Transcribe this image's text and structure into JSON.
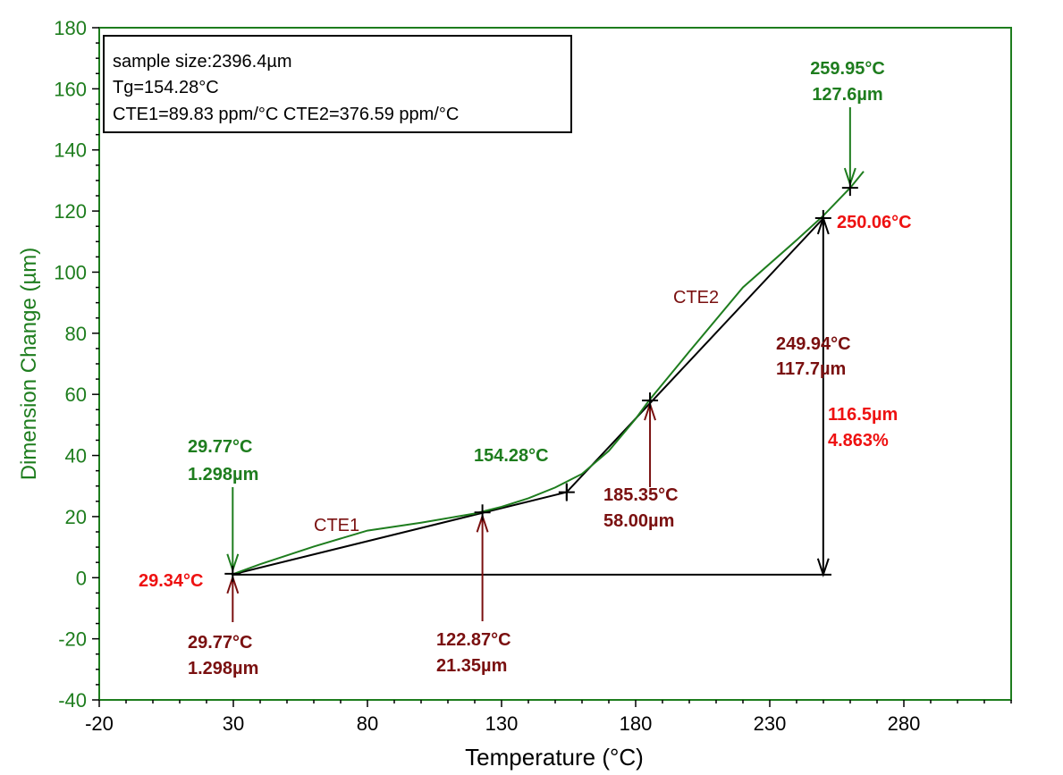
{
  "colors": {
    "green": "#1e7d1e",
    "dark_red": "#7a1010",
    "red": "#ee1111",
    "black": "#000000"
  },
  "chart_data": {
    "type": "line",
    "xlabel": "Temperature (°C)",
    "ylabel": "Dimension Change (µm)",
    "xlim": [
      -20,
      320
    ],
    "ylim": [
      -40,
      180
    ],
    "x_ticks": [
      -20,
      30,
      80,
      130,
      180,
      230,
      280
    ],
    "x_tick_labels": [
      "-20",
      "30",
      "80",
      "130",
      "180",
      "230",
      "280"
    ],
    "y_ticks": [
      -40,
      -20,
      0,
      20,
      40,
      60,
      80,
      100,
      120,
      140,
      160,
      180
    ],
    "y_tick_labels": [
      "-40",
      "-20",
      "0",
      "20",
      "40",
      "60",
      "80",
      "100",
      "120",
      "140",
      "160",
      "180"
    ],
    "legend": {
      "lines": [
        "sample size:2396.4µm",
        "Tg=154.28°C",
        "CTE1=89.83 ppm/°C  CTE2=376.59 ppm/°C"
      ]
    },
    "series": [
      {
        "name": "Dimension change",
        "color": "green",
        "x": [
          29.3,
          40,
          60,
          80,
          100,
          120,
          130,
          140,
          150,
          160,
          170,
          180,
          185,
          200,
          220,
          240,
          250,
          260,
          265
        ],
        "y": [
          1.0,
          4.4,
          10.2,
          15.4,
          18.0,
          21.0,
          23.2,
          26.0,
          29.5,
          34.0,
          41.5,
          52.0,
          58.0,
          74.0,
          95.0,
          110.5,
          118.5,
          127.6,
          133.0
        ]
      }
    ],
    "fit_lines": [
      {
        "name": "CTE1",
        "x": [
          29.34,
          154.28
        ],
        "y": [
          1.0,
          28.0
        ]
      },
      {
        "name": "CTE2",
        "x": [
          154.28,
          250.06
        ],
        "y": [
          28.0,
          117.7
        ]
      }
    ],
    "baseline": {
      "x": [
        29.34,
        253.0
      ],
      "y": [
        1.0,
        1.0
      ]
    },
    "markers": [
      {
        "x": 29.77,
        "y": 1.3
      },
      {
        "x": 122.87,
        "y": 21.35
      },
      {
        "x": 154.28,
        "y": 28.0
      },
      {
        "x": 185.35,
        "y": 58.0
      },
      {
        "x": 249.94,
        "y": 117.7
      },
      {
        "x": 259.95,
        "y": 127.6
      }
    ],
    "annotations": [
      {
        "text": "259.95°C",
        "text2": "127.6µm",
        "color": "green"
      },
      {
        "text": "250.06°C",
        "color": "red"
      },
      {
        "text": "CTE2",
        "color": "dark_red"
      },
      {
        "text": "249.94°C",
        "text2": "117.7µm",
        "color": "dark_red"
      },
      {
        "text": "116.5µm",
        "text2": "4.863%",
        "color": "red"
      },
      {
        "text": "29.77°C",
        "text2": "1.298µm",
        "color": "green"
      },
      {
        "text": "154.28°C",
        "color": "green"
      },
      {
        "text": "185.35°C",
        "text2": "58.00µm",
        "color": "dark_red"
      },
      {
        "text": "CTE1",
        "color": "dark_red"
      },
      {
        "text": "29.34°C",
        "color": "red"
      },
      {
        "text": "29.77°C",
        "text2": "1.298µm",
        "color": "dark_red"
      },
      {
        "text": "122.87°C",
        "text2": "21.35µm",
        "color": "dark_red"
      }
    ]
  }
}
